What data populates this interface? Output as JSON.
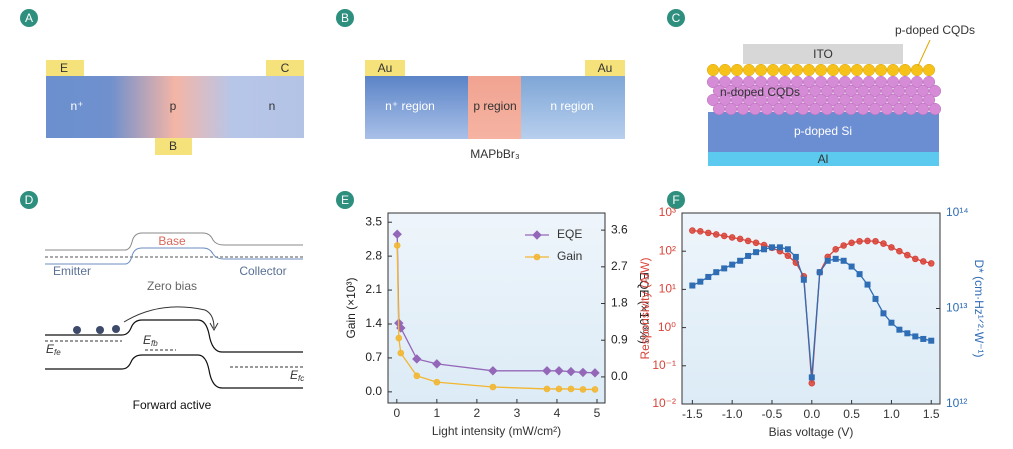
{
  "panel_a": {
    "label": "A",
    "contacts": [
      "E",
      "C",
      "B"
    ],
    "regions": [
      "n⁺",
      "p",
      "n"
    ]
  },
  "panel_b": {
    "label": "B",
    "contacts": [
      "Au",
      "Au"
    ],
    "regions": [
      "n⁺ region",
      "p region",
      "n region"
    ],
    "material": "MAPbBr₃"
  },
  "panel_c": {
    "label": "C",
    "layers": [
      "ITO",
      "n-doped CQDs",
      "p-doped Si",
      "Al"
    ],
    "callout": "p-doped CQDs"
  },
  "panel_d": {
    "label": "D",
    "zero_bias": {
      "regions": [
        "Base",
        "Emitter",
        "Collector"
      ],
      "caption": "Zero bias"
    },
    "forward_active": {
      "fermi_levels": [
        {
          "symbol": "E",
          "subscript": "fe"
        },
        {
          "symbol": "E",
          "subscript": "fb"
        },
        {
          "symbol": "E",
          "subscript": "fc"
        }
      ],
      "caption": "Forward active"
    }
  },
  "chart_data": [
    {
      "type": "line",
      "panel_label": "E",
      "xlabel": "Light intensity (mW/cm²)",
      "ylabel": "Gain (×10³)",
      "y2label": "EQE (×10³%)",
      "xlim": [
        -0.22,
        5.2
      ],
      "xticks": [
        0,
        1,
        2,
        3,
        4,
        5
      ],
      "ylim": [
        -0.23,
        3.69
      ],
      "yticks": [
        {
          "value": 0,
          "label": "0.0"
        },
        0.7,
        1.4,
        2.1,
        2.8,
        3.5
      ],
      "y2lim": [
        -0.64,
        4.02
      ],
      "y2ticks": [
        {
          "value": 0,
          "label": "0.0"
        },
        0.9,
        1.8,
        2.7,
        3.6
      ],
      "legend": "upper right",
      "x": [
        0.01,
        0.05,
        0.1,
        0.5,
        1,
        2.4,
        3.75,
        4.05,
        4.35,
        4.65,
        4.95
      ],
      "series": [
        {
          "name": "EQE",
          "color": "#9467b8",
          "marker": "diamond",
          "axis": "y2",
          "values": [
            3.5,
            1.32,
            1.2,
            0.44,
            0.32,
            0.15,
            0.15,
            0.15,
            0.13,
            0.11,
            0.1
          ]
        },
        {
          "name": "Gain",
          "color": "#f2b630",
          "marker": "circle",
          "axis": "y",
          "values": [
            3.02,
            1.11,
            0.8,
            0.33,
            0.2,
            0.1,
            0.06,
            0.06,
            0.06,
            0.05,
            0.05
          ]
        }
      ]
    },
    {
      "type": "line",
      "panel_label": "F",
      "xlabel": "Bias voltage (V)",
      "ylabel": "Responsivity (A/W)",
      "y2label": "D* (cm·Hz¹ᐟ²·W⁻¹)",
      "axis_label_colors": true,
      "ylog": true,
      "y2log": true,
      "xlim": [
        -1.63,
        1.61
      ],
      "xticks": [
        -1.5,
        {
          "value": -1,
          "label": "-1.0"
        },
        -0.5,
        {
          "value": 0,
          "label": "0.0"
        },
        0.5,
        {
          "value": 1,
          "label": "1.0"
        },
        1.5
      ],
      "ylim": [
        0.01,
        1000
      ],
      "yticks": [
        {
          "value": 0.01,
          "label": "10⁻²"
        },
        {
          "value": 0.1,
          "label": "10⁻¹"
        },
        {
          "value": 1,
          "label": "10⁰"
        },
        {
          "value": 10,
          "label": "10¹"
        },
        {
          "value": 100,
          "label": "10²"
        },
        {
          "value": 1000,
          "label": "10³"
        }
      ],
      "y2lim": [
        1000000000000.0,
        100000000000000.0
      ],
      "y2ticks": [
        {
          "value": 1000000000000.0,
          "label": "10¹²"
        },
        {
          "value": 10000000000000.0,
          "label": "10¹³"
        },
        {
          "value": 100000000000000.0,
          "label": "10¹⁴"
        }
      ],
      "x": [
        -1.5,
        -1.4,
        -1.3,
        -1.2,
        -1.1,
        -1.0,
        -0.9,
        -0.8,
        -0.7,
        -0.6,
        -0.5,
        -0.4,
        -0.3,
        -0.2,
        -0.1,
        0,
        0.1,
        0.2,
        0.3,
        0.4,
        0.5,
        0.6,
        0.7,
        0.8,
        0.9,
        1.0,
        1.1,
        1.2,
        1.3,
        1.4,
        1.5
      ],
      "series": [
        {
          "color": "#d9443a",
          "marker": "circle",
          "axis": "y",
          "values": [
            347,
            331,
            302,
            275,
            251,
            229,
            209,
            186,
            166,
            145,
            123,
            100,
            76,
            50,
            22,
            0.035,
            28,
            71,
            112,
            141,
            166,
            182,
            186,
            182,
            158,
            126,
            100,
            79,
            63,
            54,
            48
          ]
        },
        {
          "color": "#2f6db5",
          "marker": "square",
          "axis": "y2",
          "values": [
            17400000000000.0,
            19100000000000.0,
            21400000000000.0,
            24000000000000.0,
            26300000000000.0,
            28800000000000.0,
            31600000000000.0,
            35500000000000.0,
            38900000000000.0,
            41700000000000.0,
            43700000000000.0,
            43700000000000.0,
            41700000000000.0,
            34700000000000.0,
            20000000000000.0,
            1900000000000.0,
            24000000000000.0,
            31600000000000.0,
            33100000000000.0,
            31600000000000.0,
            27500000000000.0,
            22900000000000.0,
            17800000000000.0,
            12600000000000.0,
            8900000000000.0,
            7100000000000.0,
            6000000000000.0,
            5500000000000.0,
            5100000000000.0,
            4800000000000.0,
            4600000000000.0
          ]
        }
      ]
    }
  ]
}
